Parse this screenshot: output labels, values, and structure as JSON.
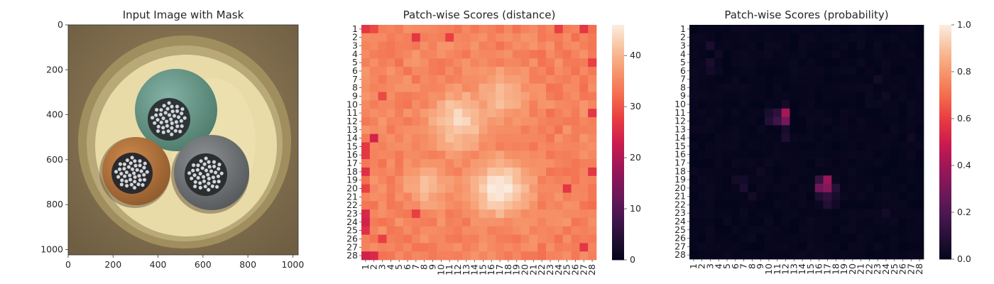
{
  "figure": {
    "panels": [
      {
        "title": "Input Image with Mask"
      },
      {
        "title": "Patch-wise Scores (distance)"
      },
      {
        "title": "Patch-wise Scores (probability)"
      }
    ]
  },
  "image_panel": {
    "x_ticks": [
      "0",
      "200",
      "400",
      "600",
      "800",
      "1000"
    ],
    "y_ticks": [
      "0",
      "200",
      "400",
      "600",
      "800",
      "1000"
    ],
    "xlim": [
      0,
      1024
    ],
    "ylim": [
      1024,
      0
    ],
    "content": "photo of a cable cross-section: three insulated wires (green, brown, grey) inside a round cream-colored sheath on a brown textured background",
    "colors": {
      "background": "#8a7653",
      "sheath_outer": "#a89460",
      "sheath": "#e6d9a6",
      "green_wire": "#6a9b8c",
      "brown_wire": "#b8763f",
      "grey_wire": "#777a7c",
      "conductor": "#cfd2d8"
    },
    "icons": [
      "cable-photo"
    ]
  },
  "chart_data": [
    {
      "type": "heatmap",
      "title": "Patch-wise Scores (distance)",
      "x_categories": [
        "1",
        "2",
        "3",
        "4",
        "5",
        "6",
        "7",
        "8",
        "9",
        "10",
        "11",
        "12",
        "13",
        "14",
        "15",
        "16",
        "17",
        "18",
        "19",
        "20",
        "21",
        "22",
        "23",
        "24",
        "25",
        "26",
        "27",
        "28"
      ],
      "y_categories": [
        "1",
        "2",
        "3",
        "4",
        "5",
        "6",
        "7",
        "8",
        "9",
        "10",
        "11",
        "12",
        "13",
        "14",
        "15",
        "16",
        "17",
        "18",
        "19",
        "20",
        "21",
        "22",
        "23",
        "24",
        "25",
        "26",
        "27",
        "28"
      ],
      "base_value": 34,
      "range": [
        0,
        46
      ],
      "colorbar_ticks": [
        0,
        10,
        20,
        30,
        40
      ],
      "colormap": "rocket",
      "hot_spots": [
        {
          "row": 12,
          "col": 12,
          "value": 44,
          "radius": 3.5
        },
        {
          "row": 9,
          "col": 17,
          "value": 41,
          "radius": 3.2
        },
        {
          "row": 20,
          "col": 17,
          "value": 46,
          "radius": 3.5
        },
        {
          "row": 19.5,
          "col": 8.5,
          "value": 41,
          "radius": 2.8
        }
      ],
      "low_cells": [
        {
          "row": 1,
          "col": 1,
          "value": 27
        },
        {
          "row": 1,
          "col": 2,
          "value": 29
        },
        {
          "row": 2,
          "col": 7,
          "value": 27
        },
        {
          "row": 2,
          "col": 11,
          "value": 28
        },
        {
          "row": 1,
          "col": 24,
          "value": 28
        },
        {
          "row": 1,
          "col": 27,
          "value": 27
        },
        {
          "row": 5,
          "col": 28,
          "value": 28
        },
        {
          "row": 11,
          "col": 28,
          "value": 27
        },
        {
          "row": 14,
          "col": 2,
          "value": 24
        },
        {
          "row": 15,
          "col": 1,
          "value": 27
        },
        {
          "row": 16,
          "col": 1,
          "value": 27
        },
        {
          "row": 18,
          "col": 1,
          "value": 26
        },
        {
          "row": 20,
          "col": 1,
          "value": 28
        },
        {
          "row": 23,
          "col": 1,
          "value": 25
        },
        {
          "row": 24,
          "col": 1,
          "value": 24
        },
        {
          "row": 25,
          "col": 1,
          "value": 26
        },
        {
          "row": 28,
          "col": 1,
          "value": 24
        },
        {
          "row": 28,
          "col": 2,
          "value": 25
        },
        {
          "row": 23,
          "col": 7,
          "value": 28
        },
        {
          "row": 20,
          "col": 25,
          "value": 27
        },
        {
          "row": 18,
          "col": 28,
          "value": 27
        },
        {
          "row": 27,
          "col": 27,
          "value": 27
        },
        {
          "row": 26,
          "col": 3,
          "value": 28
        },
        {
          "row": 9,
          "col": 3,
          "value": 29
        }
      ]
    },
    {
      "type": "heatmap",
      "title": "Patch-wise Scores (probability)",
      "x_categories": [
        "1",
        "2",
        "3",
        "4",
        "5",
        "6",
        "7",
        "8",
        "9",
        "10",
        "11",
        "12",
        "13",
        "14",
        "15",
        "16",
        "17",
        "18",
        "19",
        "20",
        "21",
        "22",
        "23",
        "24",
        "25",
        "26",
        "27",
        "28"
      ],
      "y_categories": [
        "1",
        "2",
        "3",
        "4",
        "5",
        "6",
        "7",
        "8",
        "9",
        "10",
        "11",
        "12",
        "13",
        "14",
        "15",
        "16",
        "17",
        "18",
        "19",
        "20",
        "21",
        "22",
        "23",
        "24",
        "25",
        "26",
        "27",
        "28"
      ],
      "base_value": 0.0,
      "range": [
        0.0,
        1.0
      ],
      "colorbar_ticks": [
        0.0,
        0.2,
        0.4,
        0.6,
        0.8,
        1.0
      ],
      "colorbar_tick_labels": [
        "0.0",
        "0.2",
        "0.4",
        "0.6",
        "0.8",
        "1.0"
      ],
      "colormap": "rocket",
      "cells": [
        {
          "row": 11,
          "col": 12,
          "value": 0.42
        },
        {
          "row": 12,
          "col": 12,
          "value": 0.3
        },
        {
          "row": 12,
          "col": 11,
          "value": 0.16
        },
        {
          "row": 11,
          "col": 11,
          "value": 0.12
        },
        {
          "row": 12,
          "col": 10,
          "value": 0.09
        },
        {
          "row": 11,
          "col": 10,
          "value": 0.07
        },
        {
          "row": 13,
          "col": 12,
          "value": 0.06
        },
        {
          "row": 14,
          "col": 12,
          "value": 0.08
        },
        {
          "row": 10,
          "col": 12,
          "value": 0.05
        },
        {
          "row": 19,
          "col": 17,
          "value": 0.38
        },
        {
          "row": 20,
          "col": 17,
          "value": 0.34
        },
        {
          "row": 20,
          "col": 16,
          "value": 0.28
        },
        {
          "row": 19,
          "col": 16,
          "value": 0.14
        },
        {
          "row": 21,
          "col": 17,
          "value": 0.12
        },
        {
          "row": 21,
          "col": 16,
          "value": 0.08
        },
        {
          "row": 22,
          "col": 17,
          "value": 0.09
        },
        {
          "row": 20,
          "col": 18,
          "value": 0.1
        },
        {
          "row": 21,
          "col": 18,
          "value": 0.06
        },
        {
          "row": 20,
          "col": 7,
          "value": 0.07
        },
        {
          "row": 19,
          "col": 6,
          "value": 0.05
        },
        {
          "row": 19,
          "col": 7,
          "value": 0.05
        },
        {
          "row": 21,
          "col": 8,
          "value": 0.05
        },
        {
          "row": 3,
          "col": 3,
          "value": 0.07
        },
        {
          "row": 5,
          "col": 3,
          "value": 0.07
        },
        {
          "row": 4,
          "col": 4,
          "value": 0.04
        },
        {
          "row": 6,
          "col": 3,
          "value": 0.05
        },
        {
          "row": 7,
          "col": 23,
          "value": 0.05
        },
        {
          "row": 9,
          "col": 24,
          "value": 0.04
        },
        {
          "row": 14,
          "col": 27,
          "value": 0.04
        },
        {
          "row": 23,
          "col": 24,
          "value": 0.05
        },
        {
          "row": 22,
          "col": 18,
          "value": 0.04
        },
        {
          "row": 18,
          "col": 9,
          "value": 0.04
        }
      ]
    }
  ]
}
